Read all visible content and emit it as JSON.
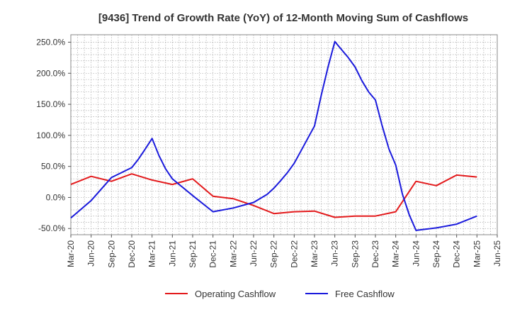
{
  "chart_data": {
    "type": "line",
    "title": "[9436]  Trend of Growth Rate (YoY) of 12-Month Moving Sum of Cashflows",
    "xlabel": "",
    "ylabel": "",
    "ylim": [
      -60,
      262
    ],
    "y_ticks": [
      -50,
      0,
      50,
      100,
      150,
      200,
      250
    ],
    "y_tick_labels": [
      "-50.0%",
      "0.0%",
      "50.0%",
      "100.0%",
      "150.0%",
      "200.0%",
      "250.0%"
    ],
    "x_tick_labels": [
      "Mar-20",
      "Jun-20",
      "Sep-20",
      "Dec-20",
      "Mar-21",
      "Jun-21",
      "Sep-21",
      "Dec-21",
      "Mar-22",
      "Jun-22",
      "Sep-22",
      "Dec-22",
      "Mar-23",
      "Jun-23",
      "Sep-23",
      "Dec-23",
      "Mar-24",
      "Jun-24",
      "Sep-24",
      "Dec-24",
      "Mar-25",
      "Jun-25"
    ],
    "grid": true,
    "legend_position": "bottom",
    "series": [
      {
        "name": "Operating Cashflow",
        "color": "#e31a1c",
        "points": [
          [
            0,
            21
          ],
          [
            3,
            34
          ],
          [
            6,
            26
          ],
          [
            9,
            38
          ],
          [
            12,
            28
          ],
          [
            15,
            21
          ],
          [
            18,
            30
          ],
          [
            21,
            2
          ],
          [
            24,
            -2
          ],
          [
            27,
            -13
          ],
          [
            30,
            -26
          ],
          [
            33,
            -23
          ],
          [
            36,
            -22
          ],
          [
            39,
            -32
          ],
          [
            42,
            -30
          ],
          [
            45,
            -30
          ],
          [
            48,
            -23
          ],
          [
            51,
            26
          ],
          [
            54,
            19
          ],
          [
            57,
            36
          ],
          [
            60,
            33
          ]
        ]
      },
      {
        "name": "Free Cashflow",
        "color": "#1a1adc",
        "points": [
          [
            0,
            -33
          ],
          [
            3,
            -5
          ],
          [
            6,
            32
          ],
          [
            9,
            48
          ],
          [
            10,
            62
          ],
          [
            11,
            78
          ],
          [
            12,
            95
          ],
          [
            13,
            68
          ],
          [
            14,
            46
          ],
          [
            15,
            30
          ],
          [
            18,
            3
          ],
          [
            21,
            -23
          ],
          [
            24,
            -17
          ],
          [
            27,
            -8
          ],
          [
            29,
            5
          ],
          [
            30,
            15
          ],
          [
            31,
            27
          ],
          [
            32,
            40
          ],
          [
            33,
            55
          ],
          [
            34,
            75
          ],
          [
            35,
            95
          ],
          [
            36,
            115
          ],
          [
            37,
            165
          ],
          [
            38,
            210
          ],
          [
            39,
            251
          ],
          [
            40,
            238
          ],
          [
            41,
            225
          ],
          [
            42,
            210
          ],
          [
            43,
            188
          ],
          [
            44,
            170
          ],
          [
            45,
            157
          ],
          [
            46,
            115
          ],
          [
            47,
            78
          ],
          [
            48,
            52
          ],
          [
            49,
            5
          ],
          [
            50,
            -28
          ],
          [
            51,
            -53
          ],
          [
            54,
            -49
          ],
          [
            57,
            -43
          ],
          [
            60,
            -30
          ]
        ]
      }
    ]
  }
}
